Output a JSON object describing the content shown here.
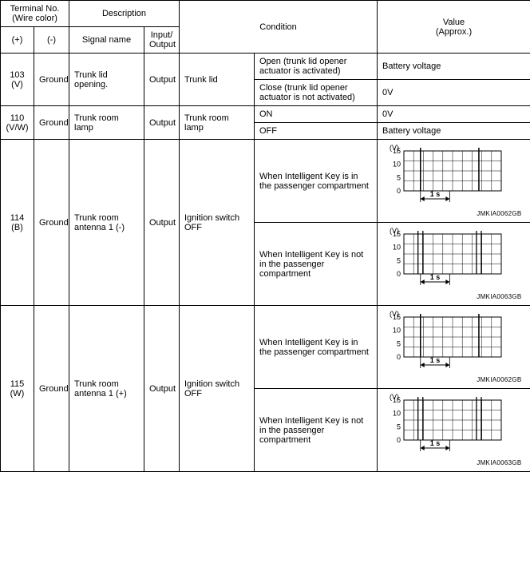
{
  "headers": {
    "terminal": "Terminal No.\n(Wire color)",
    "plus": "(+)",
    "minus": "(-)",
    "description": "Description",
    "signal": "Signal name",
    "io": "Input/\nOutput",
    "condition": "Condition",
    "value": "Value\n(Approx.)"
  },
  "rows": [
    {
      "term_plus": "103\n(V)",
      "term_minus": "Ground",
      "signal": "Trunk lid opening.",
      "io": "Output",
      "cond1": "Trunk lid",
      "sub": [
        {
          "cond2": "Open (trunk lid opener actuator is activated)",
          "value_text": "Battery voltage"
        },
        {
          "cond2": "Close (trunk lid opener actuator is not activated)",
          "value_text": "0V"
        }
      ]
    },
    {
      "term_plus": "110\n(V/W)",
      "term_minus": "Ground",
      "signal": "Trunk room lamp",
      "io": "Output",
      "cond1": "Trunk room lamp",
      "sub": [
        {
          "cond2": "ON",
          "value_text": "0V"
        },
        {
          "cond2": "OFF",
          "value_text": "Battery voltage"
        }
      ]
    },
    {
      "term_plus": "114\n(B)",
      "term_minus": "Ground",
      "signal": "Trunk room antenna 1 (-)",
      "io": "Output",
      "cond1": "Ignition switch OFF",
      "sub": [
        {
          "cond2": "When Intelligent Key is in the passenger compartment",
          "waveform": "JMKIA0062GB",
          "pulses": "single"
        },
        {
          "cond2": "When Intelligent Key is not in the passenger compartment",
          "waveform": "JMKIA0063GB",
          "pulses": "double"
        }
      ]
    },
    {
      "term_plus": "115\n(W)",
      "term_minus": "Ground",
      "signal": "Trunk room antenna 1 (+)",
      "io": "Output",
      "cond1": "Ignition switch OFF",
      "sub": [
        {
          "cond2": "When Intelligent Key is in the passenger compartment",
          "waveform": "JMKIA0062GB",
          "pulses": "single"
        },
        {
          "cond2": "When Intelligent Key is not in the passenger compartment",
          "waveform": "JMKIA0063GB",
          "pulses": "double"
        }
      ]
    }
  ],
  "waveform": {
    "y_unit": "(V)",
    "y_ticks": [
      "15",
      "10",
      "5",
      "0"
    ],
    "x_marker": "1 s",
    "grid_color": "#000000",
    "bg": "#ffffff",
    "line_color": "#000000",
    "width": 150,
    "height": 80,
    "grid_cols": 10,
    "grid_rows": 4
  }
}
